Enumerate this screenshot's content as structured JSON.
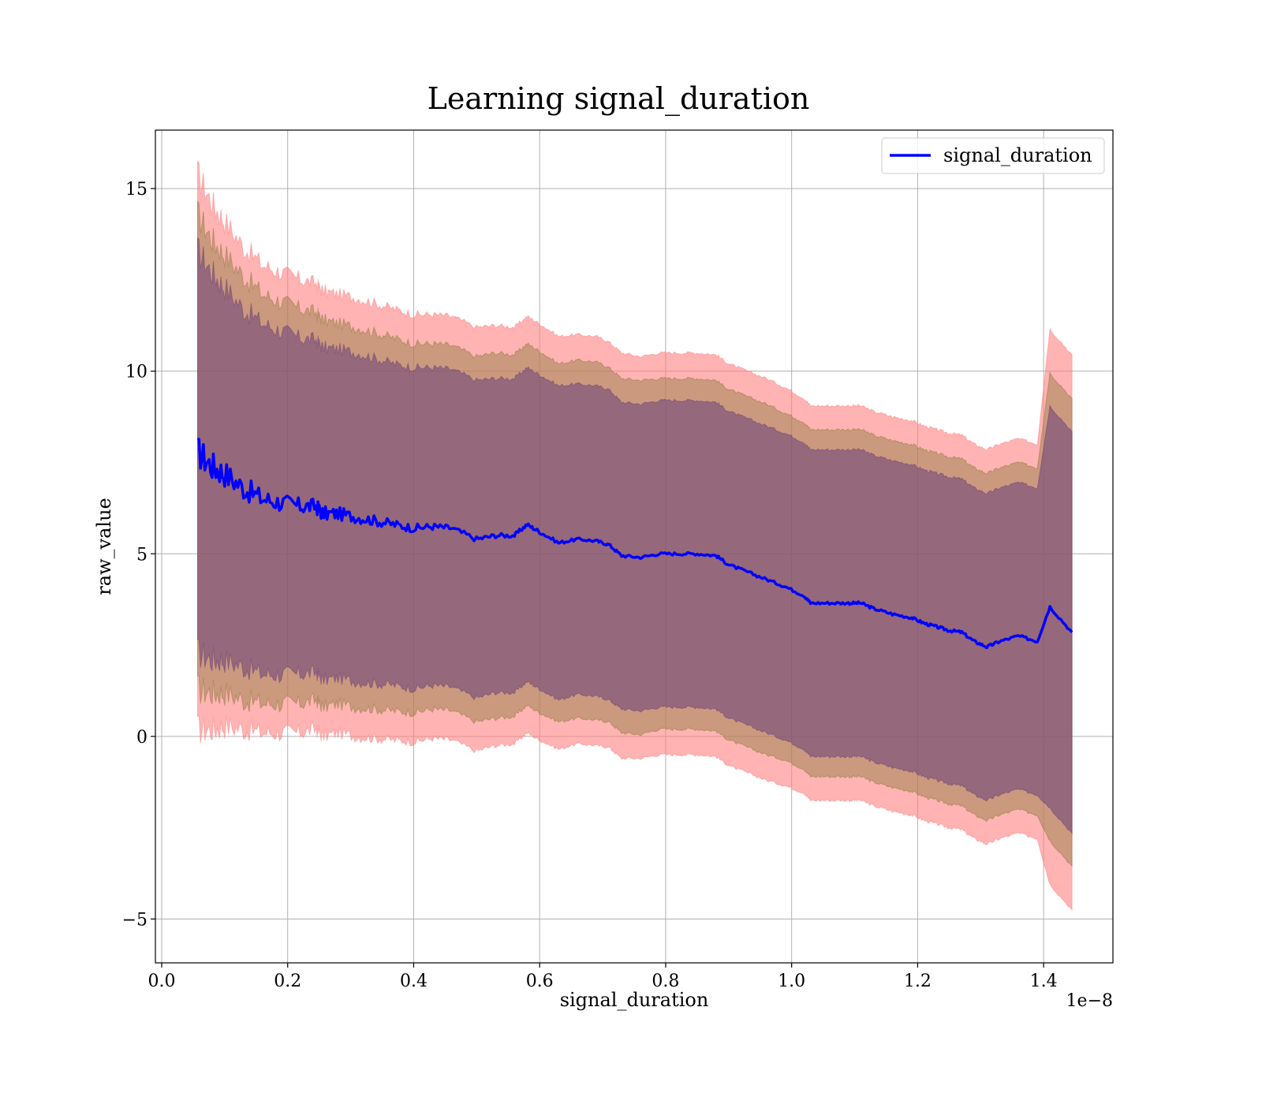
{
  "chart_data": {
    "type": "line",
    "title": "Learning signal_duration",
    "xlabel": "signal_duration",
    "ylabel": "raw_value",
    "x_offset_label": "1e−8",
    "xlim": [
      -1e-10,
      1.51e-08
    ],
    "ylim": [
      -6.2,
      16.6
    ],
    "x_ticks": [
      0.0,
      2e-09,
      4e-09,
      6e-09,
      8e-09,
      1e-08,
      1.2e-08,
      1.4e-08
    ],
    "x_tick_labels": [
      "0.0",
      "0.2",
      "0.4",
      "0.6",
      "0.8",
      "1.0",
      "1.2",
      "1.4"
    ],
    "y_ticks": [
      -5,
      0,
      5,
      10,
      15
    ],
    "y_tick_labels": [
      "−5",
      "0",
      "5",
      "10",
      "15"
    ],
    "grid": true,
    "legend": {
      "position": "top-right",
      "entries": [
        "signal_duration"
      ]
    },
    "series": [
      {
        "name": "signal_duration",
        "color": "#0000ff",
        "x": [
          5.7e-10,
          8e-10,
          1e-09,
          1.3e-09,
          1.6e-09,
          1.9e-09,
          2.2e-09,
          2.45e-09,
          2.55e-09,
          2.8e-09,
          3.1e-09,
          3.4e-09,
          3.7e-09,
          4e-09,
          4.3e-09,
          4.6e-09,
          5e-09,
          5.3e-09,
          5.6e-09,
          5.8e-09,
          6e-09,
          6.3e-09,
          6.6e-09,
          6.9e-09,
          7.1e-09,
          7.3e-09,
          7.6e-09,
          7.9e-09,
          8.2e-09,
          8.5e-09,
          8.8e-09,
          9e-09,
          9.3e-09,
          9.6e-09,
          9.9e-09,
          1.02e-08,
          1.03e-08,
          1.06e-08,
          1.09e-08,
          1.11e-08,
          1.13e-08,
          1.16e-08,
          1.19e-08,
          1.21e-08,
          1.23e-08,
          1.25e-08,
          1.27e-08,
          1.29e-08,
          1.31e-08,
          1.33e-08,
          1.36e-08,
          1.39e-08,
          1.41e-08,
          1.445e-08
        ],
        "y": [
          7.8,
          7.4,
          7.2,
          6.8,
          6.5,
          6.4,
          6.3,
          6.3,
          6.1,
          6.1,
          6.0,
          5.9,
          5.8,
          5.7,
          5.75,
          5.7,
          5.4,
          5.5,
          5.5,
          5.8,
          5.6,
          5.3,
          5.4,
          5.35,
          5.25,
          4.95,
          4.9,
          5.0,
          5.0,
          5.0,
          4.95,
          4.7,
          4.5,
          4.3,
          4.1,
          3.85,
          3.65,
          3.65,
          3.65,
          3.65,
          3.5,
          3.35,
          3.25,
          3.1,
          3.0,
          2.9,
          2.85,
          2.6,
          2.45,
          2.6,
          2.75,
          2.6,
          3.55,
          2.85
        ],
        "bands": [
          {
            "sigma": 3,
            "color": "#ff8080",
            "opacity": 0.6,
            "half_width": [
              7.6,
              7.2,
              6.9,
              6.6,
              6.4,
              6.3,
              6.2,
              6.1,
              6.1,
              6.0,
              6.0,
              5.95,
              5.9,
              5.85,
              5.8,
              5.8,
              5.8,
              5.75,
              5.7,
              5.7,
              5.7,
              5.65,
              5.6,
              5.6,
              5.55,
              5.55,
              5.5,
              5.5,
              5.5,
              5.5,
              5.5,
              5.5,
              5.5,
              5.5,
              5.45,
              5.4,
              5.4,
              5.4,
              5.4,
              5.4,
              5.4,
              5.4,
              5.4,
              5.4,
              5.4,
              5.4,
              5.4,
              5.4,
              5.4,
              5.4,
              5.4,
              5.4,
              7.6,
              7.6
            ]
          },
          {
            "sigma": 2,
            "color": "#8c7a3c",
            "opacity": 0.45,
            "half_width": [
              6.5,
              6.2,
              6.0,
              5.8,
              5.6,
              5.5,
              5.4,
              5.3,
              5.3,
              5.2,
              5.2,
              5.15,
              5.1,
              5.05,
              5.0,
              5.0,
              5.0,
              5.0,
              4.95,
              4.95,
              4.95,
              4.9,
              4.9,
              4.9,
              4.85,
              4.85,
              4.85,
              4.8,
              4.8,
              4.8,
              4.8,
              4.8,
              4.8,
              4.8,
              4.75,
              4.75,
              4.75,
              4.75,
              4.75,
              4.75,
              4.75,
              4.75,
              4.75,
              4.75,
              4.75,
              4.75,
              4.75,
              4.75,
              4.75,
              4.75,
              4.75,
              4.75,
              6.4,
              6.4
            ]
          },
          {
            "sigma": 1,
            "color": "#6b3f7a",
            "opacity": 0.55,
            "half_width": [
              5.5,
              5.3,
              5.1,
              4.9,
              4.8,
              4.7,
              4.6,
              4.55,
              4.55,
              4.5,
              4.5,
              4.45,
              4.4,
              4.4,
              4.35,
              4.35,
              4.35,
              4.3,
              4.3,
              4.3,
              4.3,
              4.3,
              4.25,
              4.25,
              4.25,
              4.2,
              4.2,
              4.2,
              4.2,
              4.2,
              4.2,
              4.2,
              4.2,
              4.2,
              4.2,
              4.2,
              4.2,
              4.2,
              4.2,
              4.2,
              4.2,
              4.2,
              4.2,
              4.2,
              4.2,
              4.2,
              4.2,
              4.2,
              4.2,
              4.2,
              4.2,
              4.2,
              5.5,
              5.5
            ]
          }
        ]
      }
    ]
  }
}
